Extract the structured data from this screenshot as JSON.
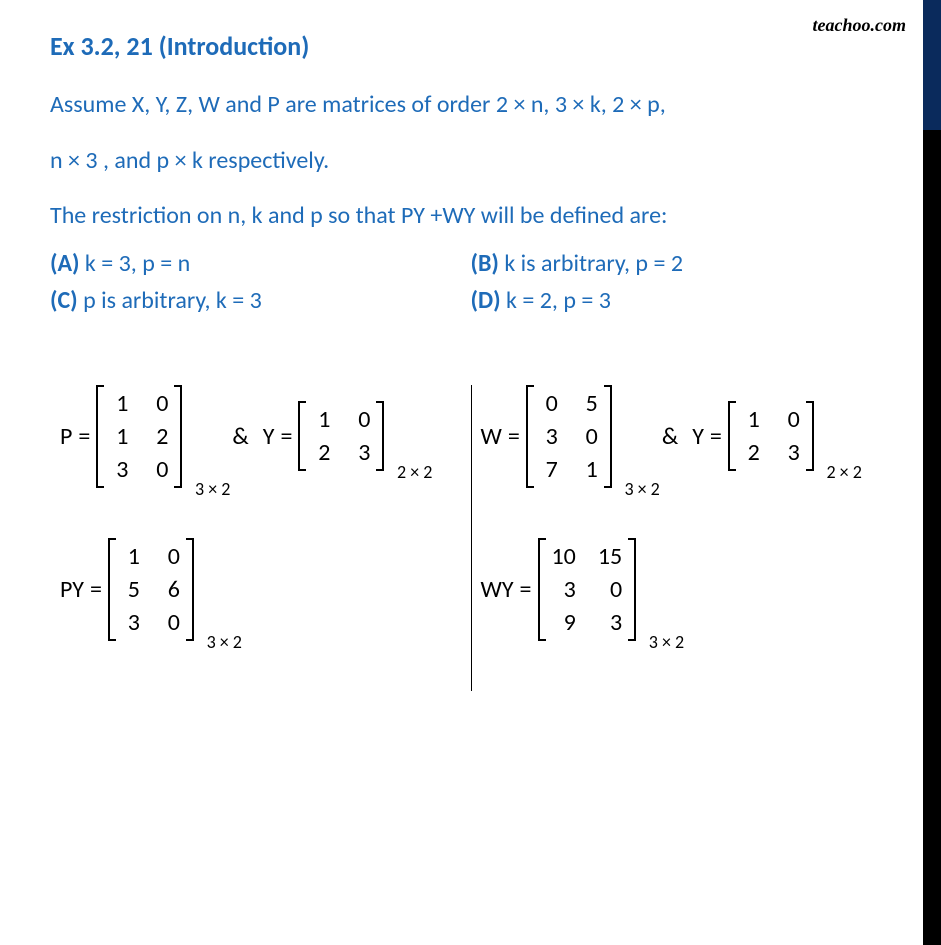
{
  "watermark": "teachoo.com",
  "heading": "Ex 3.2, 21 (Introduction)",
  "question_line1": "Assume X, Y, Z, W and P are matrices of order  2 × n, 3 × k, 2 × p,",
  "question_line2": "n × 3 , and p × k respectively.",
  "question_line3": "The restriction on n, k and p so that  PY +WY will be defined are:",
  "options": {
    "a": {
      "label": "(A)",
      "text": " k = 3, p = n"
    },
    "b": {
      "label": "(B)",
      "text": " k is arbitrary, p = 2"
    },
    "c": {
      "label": "(C)",
      "text": " p is arbitrary, k = 3"
    },
    "d": {
      "label": "(D)",
      "text": " k = 2, p = 3"
    }
  },
  "matrices": {
    "P": {
      "name": "P",
      "rows": [
        [
          "1",
          "0"
        ],
        [
          "1",
          "2"
        ],
        [
          "3",
          "0"
        ]
      ],
      "order": "3 × 2"
    },
    "Y": {
      "name": "Y",
      "rows": [
        [
          "1",
          "0"
        ],
        [
          "2",
          "3"
        ]
      ],
      "order": "2 × 2"
    },
    "W": {
      "name": "W",
      "rows": [
        [
          "0",
          "5"
        ],
        [
          "3",
          "0"
        ],
        [
          "7",
          "1"
        ]
      ],
      "order": "3 × 2"
    },
    "PY": {
      "name": "PY",
      "rows": [
        [
          "1",
          "0"
        ],
        [
          "5",
          "6"
        ],
        [
          "3",
          "0"
        ]
      ],
      "order": "3 × 2"
    },
    "WY": {
      "name": "WY",
      "rows": [
        [
          "10",
          "15"
        ],
        [
          "3",
          "0"
        ],
        [
          "9",
          "3"
        ]
      ],
      "order": "3 × 2"
    }
  },
  "symbols": {
    "eq": "=",
    "amp": "&"
  },
  "colors": {
    "heading": "#1e6bb8",
    "text": "#000000",
    "background": "#ffffff",
    "stripe_top": "#0a2a5c",
    "stripe_bottom": "#000000"
  }
}
